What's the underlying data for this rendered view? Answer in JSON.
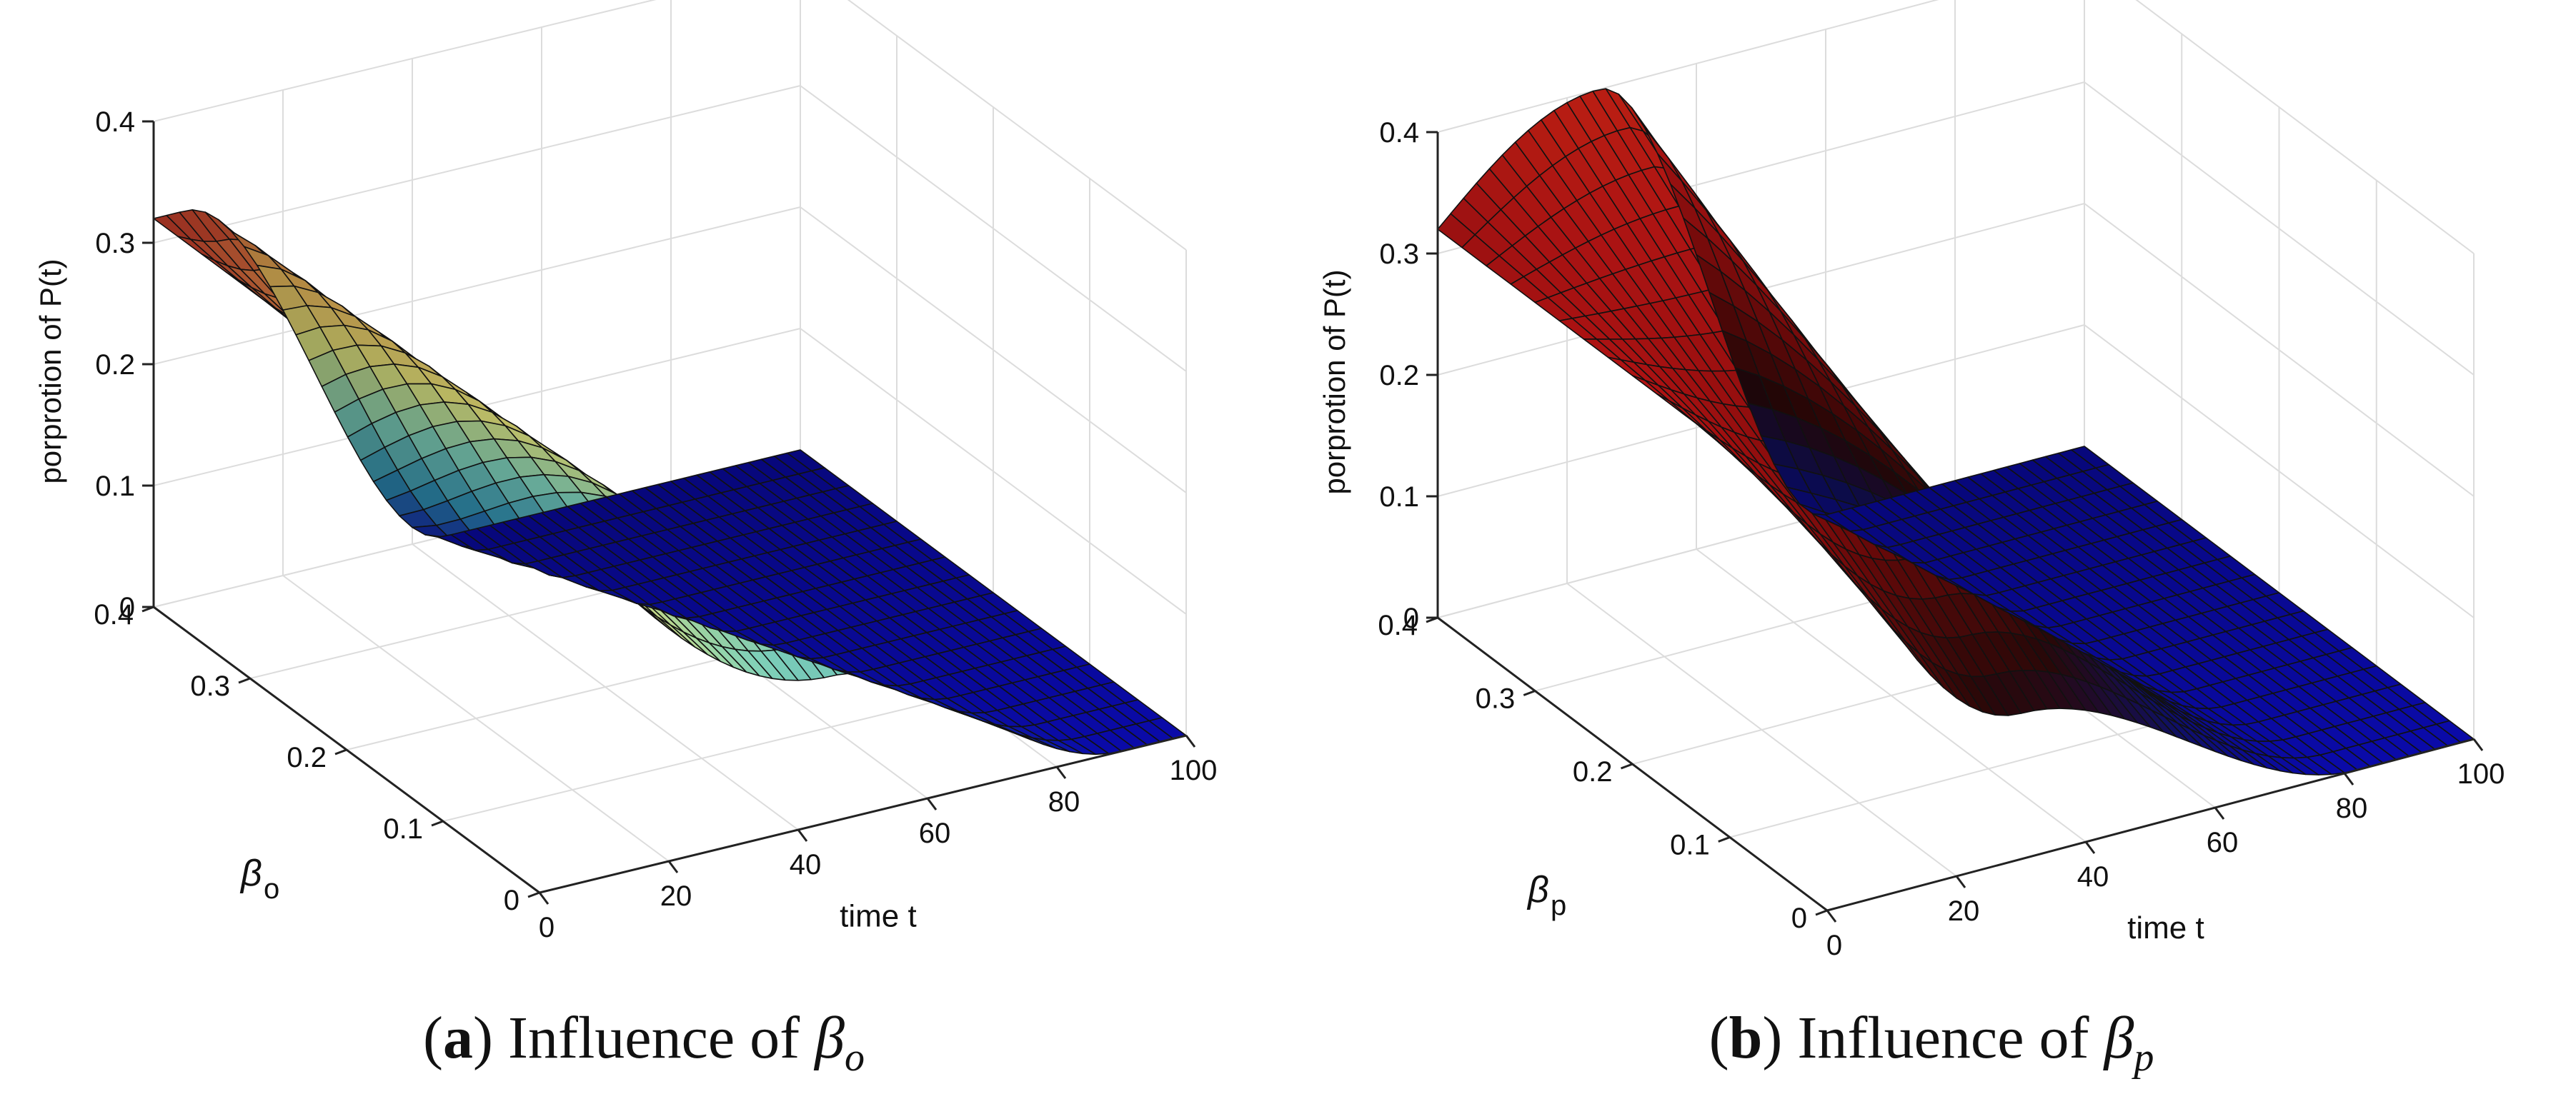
{
  "chart_data": [
    {
      "type": "surface",
      "panel_tag": "a",
      "caption_text": "Influence of",
      "caption_symbol": "β",
      "caption_sub": "o",
      "x_axis": {
        "label": "time t",
        "range": [
          0,
          100
        ],
        "ticks": [
          0,
          20,
          40,
          60,
          80,
          100
        ]
      },
      "y_axis": {
        "label_symbol": "β",
        "label_sub": "o",
        "range": [
          0,
          0.4
        ],
        "ticks": [
          0,
          0.1,
          0.2,
          0.3,
          0.4
        ]
      },
      "z_axis": {
        "label": "porprotion of P(t)",
        "range": [
          0,
          0.4
        ],
        "ticks": [
          0,
          0.1,
          0.2,
          0.3,
          0.4
        ]
      },
      "surface": {
        "p_at_t0": 0.32,
        "peak_at_beta_max": 0.32,
        "peak_at_beta_min": 0.12,
        "peak_t_at_beta_max": 5,
        "peak_t_at_beta_min": 45,
        "decay_end_t_at_beta_max": 45,
        "decay_end_t_at_beta_min": 90,
        "colormap": [
          "#0a0aa8",
          "#2e8fb3",
          "#7fd0b8",
          "#e3e37a",
          "#f0b95a",
          "#c82020",
          "#ff2a1a"
        ]
      }
    },
    {
      "type": "surface",
      "panel_tag": "b",
      "caption_text": "Influence of",
      "caption_symbol": "β",
      "caption_sub": "p",
      "x_axis": {
        "label": "time t",
        "range": [
          0,
          100
        ],
        "ticks": [
          0,
          20,
          40,
          60,
          80,
          100
        ]
      },
      "y_axis": {
        "label_symbol": "β",
        "label_sub": "p",
        "range": [
          0,
          0.4
        ],
        "ticks": [
          0,
          0.1,
          0.2,
          0.3,
          0.4
        ]
      },
      "z_axis": {
        "label": "porprotion of P(t)",
        "range": [
          0,
          0.4
        ],
        "ticks": [
          0,
          0.1,
          0.2,
          0.3,
          0.4
        ]
      },
      "surface": {
        "p_at_t0": 0.32,
        "peak_at_beta_max": 0.4,
        "peak_at_beta_min": 0.12,
        "peak_t_at_beta_max": 25,
        "peak_t_at_beta_min": 30,
        "decay_end_t_at_beta_max": 60,
        "decay_end_t_at_beta_min": 82,
        "colormap": [
          "#0a0aa8",
          "#101060",
          "#2a0808",
          "#6a0a0a",
          "#a81010",
          "#d81818",
          "#ff2a1a"
        ]
      }
    }
  ]
}
